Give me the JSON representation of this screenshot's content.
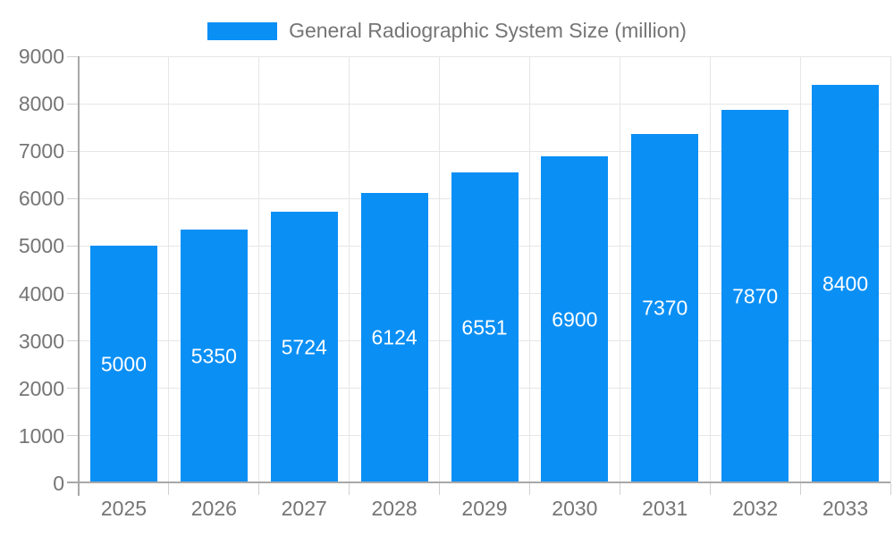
{
  "legend": {
    "label": "General Radiographic System Size (million)"
  },
  "colors": {
    "bar": "#0a8ff5",
    "bar_label_text": "#ffffff",
    "axis_text": "#757575",
    "legend_text": "#757575",
    "axis_line": "#a8a8a8",
    "gridline": "#e6e6e6",
    "background": "#ffffff"
  },
  "chart_data": {
    "type": "bar",
    "title": "General Radiographic System Size (million)",
    "categories": [
      "2025",
      "2026",
      "2027",
      "2028",
      "2029",
      "2030",
      "2031",
      "2032",
      "2033"
    ],
    "values": [
      5000,
      5350,
      5724,
      6124,
      6551,
      6900,
      7370,
      7870,
      8400
    ],
    "bar_labels": [
      "5000",
      "5350",
      "5724",
      "6124",
      "6551",
      "6900",
      "7370",
      "7870",
      "8400"
    ],
    "xlabel": "",
    "ylabel": "",
    "ylim": [
      0,
      9000
    ],
    "ytick_step": 1000,
    "yticks": [
      0,
      1000,
      2000,
      3000,
      4000,
      5000,
      6000,
      7000,
      8000,
      9000
    ],
    "grid": true,
    "legend_position": "top",
    "bar_color": "#0a8ff5",
    "bar_label_color": "#ffffff",
    "bar_labels_inside_centered": true
  }
}
